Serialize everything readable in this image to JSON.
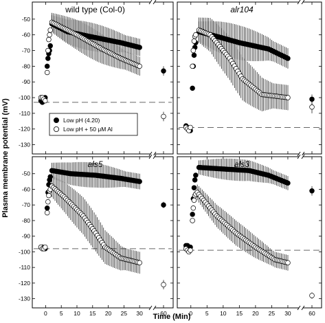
{
  "figure": {
    "ylabel": "Plasma membrane potential (mV)",
    "xlabel": "Time (Min)",
    "legend": [
      {
        "label": "Low pH (4.20)",
        "marker": "filled"
      },
      {
        "label": "Low pH + 50 μM Al",
        "marker": "open"
      }
    ],
    "legend_location": "wild type panel, lower left"
  },
  "chart_data": [
    {
      "type": "scatter",
      "title": "wild type (Col-0)",
      "title_italic": false,
      "ylim": [
        -135,
        -40
      ],
      "yticks": [
        -130,
        -120,
        -110,
        -100,
        -90,
        -80,
        -70,
        -60,
        -50
      ],
      "xticks": [
        0,
        5,
        10,
        15,
        20,
        25,
        30
      ],
      "xbreak_tick": 60,
      "baseline": -103,
      "series": [
        {
          "name": "Low pH (4.20)",
          "marker": "filled",
          "initial": [
            -102,
            -103,
            -102,
            -100
          ],
          "rise": [
            [
              0.5,
              -80
            ],
            [
              0.75,
              -75
            ],
            [
              1.0,
              -72
            ],
            [
              1.25,
              -70
            ],
            [
              1.5,
              -67
            ]
          ],
          "plateau": [
            [
              2,
              -53
            ],
            [
              7,
              -58
            ],
            [
              14,
              -61
            ],
            [
              24,
              -65
            ],
            [
              30,
              -68
            ]
          ],
          "err_max": 7,
          "at60": -83,
          "at60_err": 3
        },
        {
          "name": "Low pH + 50 μM Al",
          "marker": "open",
          "initial": [
            -100,
            -100,
            -101,
            -102
          ],
          "rise": [
            [
              0.5,
              -84
            ],
            [
              0.75,
              -70
            ],
            [
              1.0,
              -63
            ],
            [
              1.25,
              -60
            ],
            [
              1.5,
              -57
            ]
          ],
          "plateau": [
            [
              2,
              -52
            ],
            [
              10,
              -60
            ],
            [
              18,
              -69
            ],
            [
              24,
              -75
            ],
            [
              30,
              -80
            ]
          ],
          "err_max": 8,
          "at60": -112,
          "at60_err": 3
        }
      ]
    },
    {
      "type": "scatter",
      "title": "alr104",
      "title_italic": true,
      "ylim": [
        -135,
        -40
      ],
      "yticks": [
        -130,
        -120,
        -110,
        -100,
        -90,
        -80,
        -70,
        -60,
        -50
      ],
      "xticks": [
        0,
        5,
        10,
        15,
        20,
        25,
        30
      ],
      "xbreak_tick": 60,
      "baseline": -119,
      "series": [
        {
          "name": "Low pH (4.20)",
          "marker": "filled",
          "initial": [
            -118,
            -119,
            -120,
            -121
          ],
          "rise": [
            [
              0.5,
              -94
            ],
            [
              0.75,
              -80
            ],
            [
              1.0,
              -73
            ],
            [
              1.25,
              -68
            ],
            [
              1.5,
              -65
            ]
          ],
          "plateau": [
            [
              2.5,
              -58
            ],
            [
              8,
              -61
            ],
            [
              15,
              -65
            ],
            [
              24,
              -69
            ],
            [
              30,
              -75
            ]
          ],
          "err_max": 9,
          "at60": -101,
          "at60_err": 3
        },
        {
          "name": "Low pH + 50 μM Al",
          "marker": "open",
          "initial": [
            -119,
            -120,
            -121,
            -119
          ],
          "rise": [
            [
              0.5,
              -80
            ],
            [
              0.75,
              -70
            ],
            [
              1.0,
              -64
            ],
            [
              1.25,
              -61
            ],
            [
              1.5,
              -60
            ]
          ],
          "plateau": [
            [
              2.5,
              -57
            ],
            [
              6,
              -60
            ],
            [
              12,
              -75
            ],
            [
              16,
              -88
            ],
            [
              22,
              -98
            ],
            [
              30,
              -100
            ]
          ],
          "err_max": 12,
          "at60": -106,
          "at60_err": 4
        }
      ]
    },
    {
      "type": "scatter",
      "title": "als5",
      "title_italic": true,
      "ylim": [
        -135,
        -40
      ],
      "yticks": [
        -130,
        -120,
        -110,
        -100,
        -90,
        -80,
        -70,
        -60,
        -50
      ],
      "xticks": [
        0,
        5,
        10,
        15,
        20,
        25,
        30
      ],
      "xbreak_tick": 60,
      "baseline": -98,
      "series": [
        {
          "name": "Low pH (4.20)",
          "marker": "filled",
          "initial": [
            -97,
            -97,
            -98,
            -98
          ],
          "rise": [
            [
              0.5,
              -72
            ],
            [
              0.75,
              -62
            ],
            [
              1.0,
              -57
            ],
            [
              1.25,
              -54
            ],
            [
              1.5,
              -52
            ]
          ],
          "plateau": [
            [
              2,
              -48
            ],
            [
              8,
              -50
            ],
            [
              16,
              -51
            ],
            [
              24,
              -53
            ],
            [
              30,
              -55
            ]
          ],
          "err_max": 6,
          "at60": -70,
          "at60_err": 2
        },
        {
          "name": "Low pH + 50 μM Al",
          "marker": "open",
          "initial": [
            -97,
            -98,
            -98,
            -97
          ],
          "rise": [
            [
              0.5,
              -75
            ],
            [
              0.75,
              -68
            ],
            [
              1.0,
              -64
            ],
            [
              1.25,
              -61
            ],
            [
              1.5,
              -60
            ]
          ],
          "plateau": [
            [
              2,
              -58
            ],
            [
              6,
              -65
            ],
            [
              12,
              -77
            ],
            [
              16,
              -88
            ],
            [
              19,
              -97
            ],
            [
              24,
              -104
            ],
            [
              30,
              -107
            ]
          ],
          "err_max": 10,
          "at60": -121,
          "at60_err": 3
        }
      ]
    },
    {
      "type": "scatter",
      "title": "als3",
      "title_italic": true,
      "ylim": [
        -135,
        -40
      ],
      "yticks": [
        -130,
        -120,
        -110,
        -100,
        -90,
        -80,
        -70,
        -60,
        -50
      ],
      "xticks": [
        0,
        5,
        10,
        15,
        20,
        25,
        30
      ],
      "xbreak_tick": 60,
      "baseline": -99,
      "series": [
        {
          "name": "Low pH (4.20)",
          "marker": "filled",
          "initial": [
            -96,
            -96,
            -97,
            -97
          ],
          "rise": [
            [
              0.5,
              -76
            ],
            [
              0.75,
              -66
            ],
            [
              1.0,
              -59
            ],
            [
              1.25,
              -54
            ],
            [
              1.5,
              -51
            ]
          ],
          "plateau": [
            [
              2.5,
              -46
            ],
            [
              10,
              -47
            ],
            [
              18,
              -48
            ],
            [
              24,
              -51
            ],
            [
              30,
              -56
            ]
          ],
          "err_max": 5,
          "at60": -61,
          "at60_err": 3
        },
        {
          "name": "Low pH + 50 μM Al",
          "marker": "open",
          "initial": [
            -98,
            -99,
            -100,
            -99
          ],
          "rise": [
            [
              0.5,
              -80
            ],
            [
              0.75,
              -72
            ],
            [
              1.0,
              -67
            ],
            [
              1.25,
              -64
            ],
            [
              1.5,
              -63
            ]
          ],
          "plateau": [
            [
              2,
              -62
            ],
            [
              8,
              -77
            ],
            [
              14,
              -88
            ],
            [
              20,
              -97
            ],
            [
              26,
              -105
            ],
            [
              30,
              -107
            ]
          ],
          "err_max": 6,
          "at60": -128,
          "at60_err": 2
        }
      ]
    }
  ]
}
